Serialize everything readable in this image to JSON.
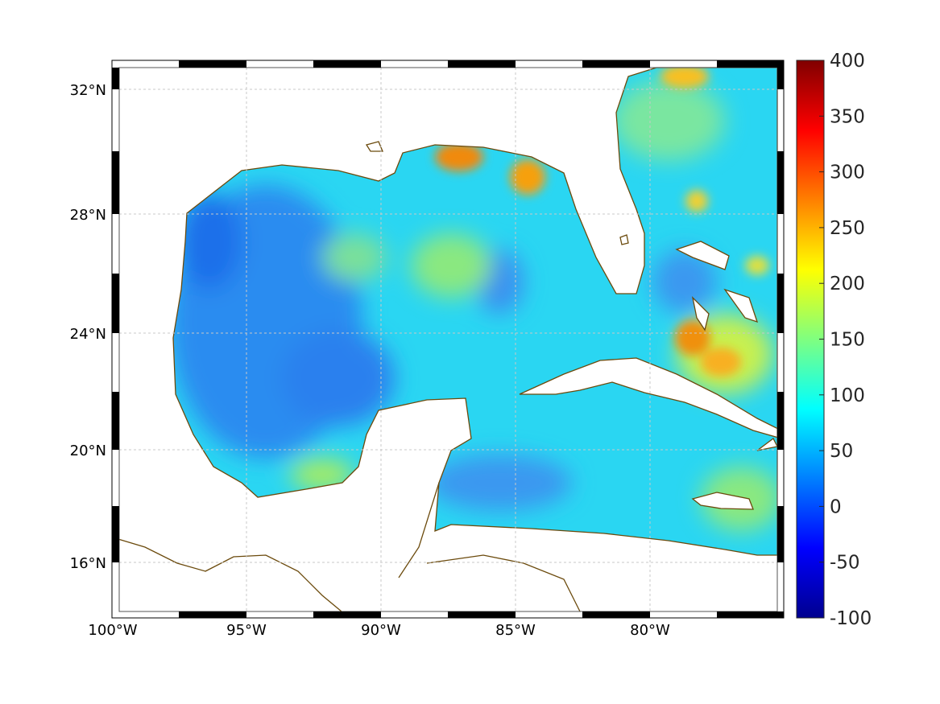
{
  "map": {
    "projection_frame": "fancy",
    "lon_ticks": [
      "100°W",
      "95°W",
      "90°W",
      "85°W",
      "80°W"
    ],
    "lat_ticks": [
      "32°N",
      "28°N",
      "24°N",
      "20°N",
      "16°N"
    ],
    "coast_color": "#6b4a0c"
  },
  "colorbar": {
    "min": -100,
    "max": 400,
    "ticks": [
      "400",
      "350",
      "300",
      "250",
      "200",
      "150",
      "100",
      "50",
      "0",
      "-50",
      "-100"
    ],
    "colormap": "jet"
  }
}
